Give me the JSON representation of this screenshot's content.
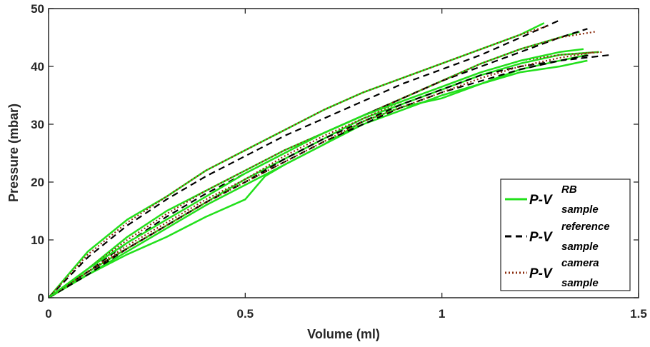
{
  "chart_data": {
    "type": "line",
    "title": "",
    "xlabel": "Volume (ml)",
    "ylabel": "Pressure (mbar)",
    "xlim": [
      0,
      1.5
    ],
    "ylim": [
      0,
      50
    ],
    "xticks": [
      0,
      0.5,
      1,
      1.5
    ],
    "xtick_labels": [
      "0",
      "0.5",
      "1",
      "1.5"
    ],
    "yticks": [
      0,
      10,
      20,
      30,
      40,
      50
    ],
    "ytick_labels": [
      "0",
      "10",
      "20",
      "30",
      "40",
      "50"
    ],
    "grid": false,
    "legend_position": "bottom-right",
    "legend": [
      {
        "base": "P-V",
        "sup": "RB",
        "sub": "sample",
        "color": "#22e01b",
        "style": "solid"
      },
      {
        "base": "P-V",
        "sup": "reference",
        "sub": "sample",
        "color": "#000000",
        "style": "dashed"
      },
      {
        "base": "P-V",
        "sup": "camera",
        "sub": "sample",
        "color": "#8b2c0e",
        "style": "dotted"
      }
    ],
    "series": [
      {
        "color": "#22e01b",
        "style": "solid",
        "x": [
          0,
          0.1,
          0.2,
          0.3,
          0.4,
          0.5,
          0.6,
          0.7,
          0.8,
          0.9,
          1.0,
          1.1,
          1.2,
          1.26
        ],
        "y": [
          0,
          8,
          13.5,
          17.5,
          22,
          25.5,
          29,
          32.5,
          35.5,
          38,
          40.5,
          43,
          45.5,
          47.5
        ]
      },
      {
        "color": "#000000",
        "style": "dashed",
        "x": [
          0,
          0.1,
          0.2,
          0.3,
          0.4,
          0.5,
          0.6,
          0.7,
          0.8,
          0.9,
          1.0,
          1.1,
          1.2,
          1.3
        ],
        "y": [
          0,
          7,
          12.5,
          17,
          21,
          24.5,
          28,
          31,
          34,
          37,
          39.5,
          42,
          45,
          48
        ]
      },
      {
        "color": "#8b2c0e",
        "style": "dotted",
        "x": [
          0,
          0.1,
          0.2,
          0.3,
          0.4,
          0.5,
          0.6,
          0.7,
          0.8,
          0.9,
          1.0,
          1.1,
          1.2,
          1.27
        ],
        "y": [
          0,
          7.5,
          13,
          17.5,
          22,
          25.5,
          29,
          32.5,
          35.5,
          38,
          40.5,
          43,
          45.5,
          47
        ]
      },
      {
        "color": "#22e01b",
        "style": "solid",
        "x": [
          0,
          0.1,
          0.2,
          0.3,
          0.4,
          0.5,
          0.6,
          0.7,
          0.8,
          0.9,
          1.0,
          1.1,
          1.2,
          1.3,
          1.35
        ],
        "y": [
          0,
          5,
          10.5,
          15,
          18.5,
          22,
          25.5,
          28.5,
          31.5,
          34.5,
          37.5,
          40.5,
          43,
          45,
          46
        ]
      },
      {
        "color": "#000000",
        "style": "dashed",
        "x": [
          0,
          0.1,
          0.2,
          0.3,
          0.4,
          0.5,
          0.6,
          0.7,
          0.8,
          0.9,
          1.0,
          1.1,
          1.2,
          1.3,
          1.37
        ],
        "y": [
          0,
          4.5,
          9.5,
          14,
          18,
          21.5,
          25,
          28.5,
          31.5,
          34.5,
          37.5,
          40,
          42.5,
          45,
          46.5
        ]
      },
      {
        "color": "#8b2c0e",
        "style": "dotted",
        "x": [
          0,
          0.1,
          0.2,
          0.3,
          0.4,
          0.5,
          0.6,
          0.7,
          0.8,
          0.9,
          1.0,
          1.1,
          1.2,
          1.3,
          1.39
        ],
        "y": [
          0,
          5,
          10,
          14.5,
          18.5,
          22,
          25.5,
          28.5,
          31.5,
          34.5,
          37.5,
          40.5,
          43,
          45,
          46
        ]
      },
      {
        "color": "#22e01b",
        "style": "solid",
        "x": [
          0,
          0.1,
          0.2,
          0.3,
          0.4,
          0.5,
          0.55,
          0.6,
          0.7,
          0.8,
          0.9,
          1.0,
          1.1,
          1.2,
          1.3,
          1.37
        ],
        "y": [
          0,
          4,
          7.5,
          10.5,
          14,
          17,
          21,
          23,
          26.5,
          30.5,
          33,
          34.5,
          37,
          39,
          40,
          41
        ]
      },
      {
        "color": "#22e01b",
        "style": "solid",
        "x": [
          0,
          0.1,
          0.2,
          0.3,
          0.4,
          0.5,
          0.6,
          0.7,
          0.8,
          0.9,
          1.0,
          1.1,
          1.2,
          1.3,
          1.4
        ],
        "y": [
          0,
          4.5,
          8.5,
          12.5,
          16.5,
          20.5,
          24,
          27.5,
          31,
          33.5,
          36,
          38.5,
          40.5,
          42,
          42.5
        ]
      },
      {
        "color": "#000000",
        "style": "dashed",
        "x": [
          0,
          0.1,
          0.2,
          0.3,
          0.4,
          0.5,
          0.6,
          0.7,
          0.8,
          0.9,
          1.0,
          1.1,
          1.2,
          1.3,
          1.43
        ],
        "y": [
          0,
          4.5,
          8.5,
          12.5,
          16.5,
          20,
          24,
          27.5,
          30.5,
          33.5,
          36,
          38.5,
          40,
          41,
          42
        ]
      },
      {
        "color": "#8b2c0e",
        "style": "dotted",
        "x": [
          0,
          0.1,
          0.2,
          0.3,
          0.4,
          0.5,
          0.6,
          0.7,
          0.8,
          0.9,
          1.0,
          1.1,
          1.2,
          1.3,
          1.41
        ],
        "y": [
          0,
          4.5,
          9,
          13,
          17,
          20.5,
          24.5,
          28,
          31,
          34,
          36.5,
          39,
          41,
          42,
          42.5
        ]
      },
      {
        "color": "#22e01b",
        "style": "solid",
        "x": [
          0,
          0.1,
          0.2,
          0.3,
          0.4,
          0.5,
          0.6,
          0.7,
          0.8,
          0.9,
          1.0,
          1.1,
          1.2,
          1.3,
          1.37
        ],
        "y": [
          0,
          4,
          8,
          12,
          16,
          19.5,
          23,
          26.5,
          30,
          32.5,
          35,
          37,
          39.5,
          41,
          42
        ]
      },
      {
        "color": "#000000",
        "style": "dashed",
        "x": [
          0,
          0.1,
          0.2,
          0.3,
          0.4,
          0.5,
          0.6,
          0.7,
          0.8,
          0.9,
          1.0,
          1.1,
          1.2,
          1.3,
          1.38
        ],
        "y": [
          0,
          4,
          8.5,
          12.5,
          16.5,
          20,
          23.5,
          27,
          30,
          33,
          35.5,
          37.5,
          39.5,
          41,
          42
        ]
      },
      {
        "color": "#8b2c0e",
        "style": "dotted",
        "x": [
          0,
          0.1,
          0.2,
          0.3,
          0.4,
          0.5,
          0.6,
          0.7,
          0.8,
          0.9,
          1.0,
          1.1,
          1.2,
          1.3,
          1.39
        ],
        "y": [
          0,
          4.5,
          8.5,
          12.5,
          16.5,
          20,
          23.5,
          27,
          30.5,
          33,
          35.5,
          38,
          40,
          41.5,
          42.5
        ]
      },
      {
        "color": "#22e01b",
        "style": "solid",
        "x": [
          0,
          0.1,
          0.2,
          0.3,
          0.4,
          0.5,
          0.6,
          0.7,
          0.8,
          0.9,
          1.0,
          1.1,
          1.2,
          1.3,
          1.36
        ],
        "y": [
          0,
          5,
          9.5,
          13.5,
          17.5,
          21.5,
          25,
          28.5,
          31.5,
          34,
          36.5,
          39,
          41,
          42.5,
          43
        ]
      }
    ]
  }
}
